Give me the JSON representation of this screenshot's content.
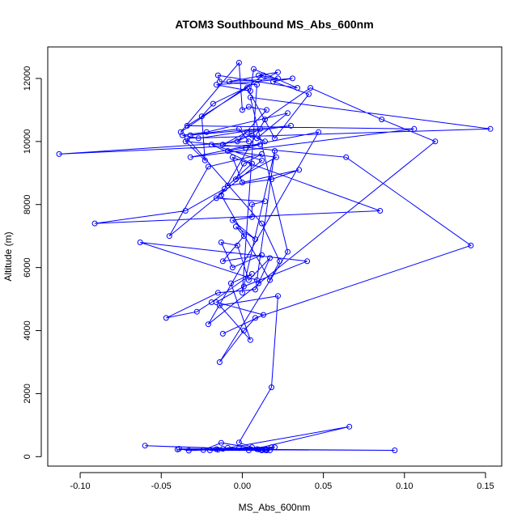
{
  "chart_data": {
    "type": "line",
    "title": "ATOM3 Southbound MS_Abs_600nm",
    "xlabel": "MS_Abs_600nm",
    "ylabel": "Altitude (m)",
    "xlim": [
      -0.12,
      0.16
    ],
    "ylim": [
      -300,
      13000
    ],
    "x_ticks": [
      -0.1,
      -0.05,
      0.0,
      0.05,
      0.1,
      0.15
    ],
    "x_tick_labels": [
      "-0.10",
      "-0.05",
      "0.00",
      "0.05",
      "0.10",
      "0.15"
    ],
    "y_ticks": [
      0,
      2000,
      4000,
      6000,
      8000,
      10000,
      12000
    ],
    "y_tick_labels": [
      "0",
      "2000",
      "4000",
      "6000",
      "8000",
      "10000",
      "12000"
    ],
    "grid": false,
    "colors": {
      "series": "#0000ff",
      "axis": "#000000",
      "background": "#ffffff"
    },
    "series": [
      {
        "marker": "open-circle",
        "x": [
          0.015,
          0.018,
          0.004,
          0.066,
          -0.012,
          0.012,
          0.02,
          -0.033,
          -0.039,
          0.094,
          -0.04,
          0.017,
          -0.02,
          0.006,
          -0.002,
          -0.016,
          0.01,
          -0.06,
          0.014,
          0.012,
          -0.024,
          -0.013,
          0.015,
          -0.015,
          -0.009,
          0.009,
          -0.002,
          0.018,
          0.022,
          -0.014,
          0.005,
          -0.007,
          0.006,
          -0.019,
          -0.028,
          -0.047,
          -0.015,
          0.008,
          0.01,
          0.017,
          0.004,
          -0.003,
          -0.013,
          -0.006,
          0.012,
          -0.012,
          0.001,
          -0.004,
          0.008,
          -0.006,
          0.006,
          0.006,
          0.014,
          -0.016,
          -0.011,
          -0.035,
          -0.091,
          0.085,
          -0.006,
          0.0,
          0.035,
          0.018,
          -0.009,
          0.006,
          -0.019,
          0.012,
          -0.045,
          -0.021,
          0.012,
          0.001,
          -0.004,
          0.021,
          -0.009,
          0.002,
          0.011,
          -0.113,
          0.004,
          -0.002,
          -0.032,
          0.03,
          0.003,
          -0.012,
          0.006,
          0.014,
          0.009,
          0.028,
          -0.022,
          -0.037,
          -0.027,
          0.011,
          -0.003,
          0.015,
          0.004,
          0.0,
          -0.002,
          -0.038,
          0.013,
          -0.008,
          0.022,
          0.01,
          0.022,
          -0.018,
          -0.025,
          -0.023,
          -0.035,
          0.064,
          0.141,
          0.008,
          0.001,
          -0.014,
          0.028,
          0.005,
          0.153,
          -0.034,
          0.012,
          0.023,
          0.017,
          -0.013,
          0.014,
          0.042,
          0.086,
          0.119,
          -0.021,
          0.047,
          -0.032,
          0.106,
          -0.034,
          0.003,
          0.02,
          0.041,
          0.019,
          0.031,
          -0.016,
          0.005,
          0.007,
          0.034,
          -0.015,
          -0.014,
          0.009,
          0.0,
          0.02,
          0.009,
          -0.063,
          0.04,
          0.001,
          -0.016,
          0.013,
          -0.012
        ],
        "y": [
          230,
          300,
          200,
          950,
          250,
          200,
          300,
          190,
          250,
          200,
          230,
          200,
          200,
          300,
          270,
          240,
          230,
          350,
          210,
          230,
          210,
          440,
          200,
          220,
          280,
          240,
          450,
          2200,
          5100,
          4800,
          3700,
          5500,
          5800,
          4900,
          4600,
          4400,
          5200,
          5300,
          5500,
          6300,
          5600,
          6700,
          6800,
          6000,
          6400,
          6200,
          7000,
          7300,
          6900,
          7500,
          7600,
          8000,
          8100,
          8200,
          8500,
          7800,
          7400,
          7800,
          9500,
          8700,
          9100,
          8800,
          8600,
          9300,
          9900,
          9400,
          7000,
          9200,
          9600,
          9300,
          8800,
          9500,
          9700,
          9800,
          9900,
          9600,
          10000,
          10400,
          10200,
          10500,
          10300,
          9900,
          10200,
          10000,
          10100,
          10900,
          10300,
          10200,
          10100,
          10400,
          10000,
          11000,
          11100,
          11000,
          12500,
          10300,
          12100,
          11900,
          12000,
          12100,
          12200,
          11200,
          10800,
          9400,
          10000,
          9500,
          6700,
          4400,
          4000,
          3000,
          6500,
          11400,
          10400,
          10100,
          7400,
          6200,
          5600,
          8300,
          10700,
          11700,
          10700,
          10000,
          4200,
          10300,
          9500,
          10400,
          10500,
          11700,
          10100,
          11500,
          11900,
          12000,
          11800,
          11600,
          12300,
          11700,
          12100,
          11900,
          11800,
          5200,
          9700,
          5600,
          6800,
          6200,
          5400,
          4900,
          4500,
          3900
        ]
      }
    ]
  }
}
